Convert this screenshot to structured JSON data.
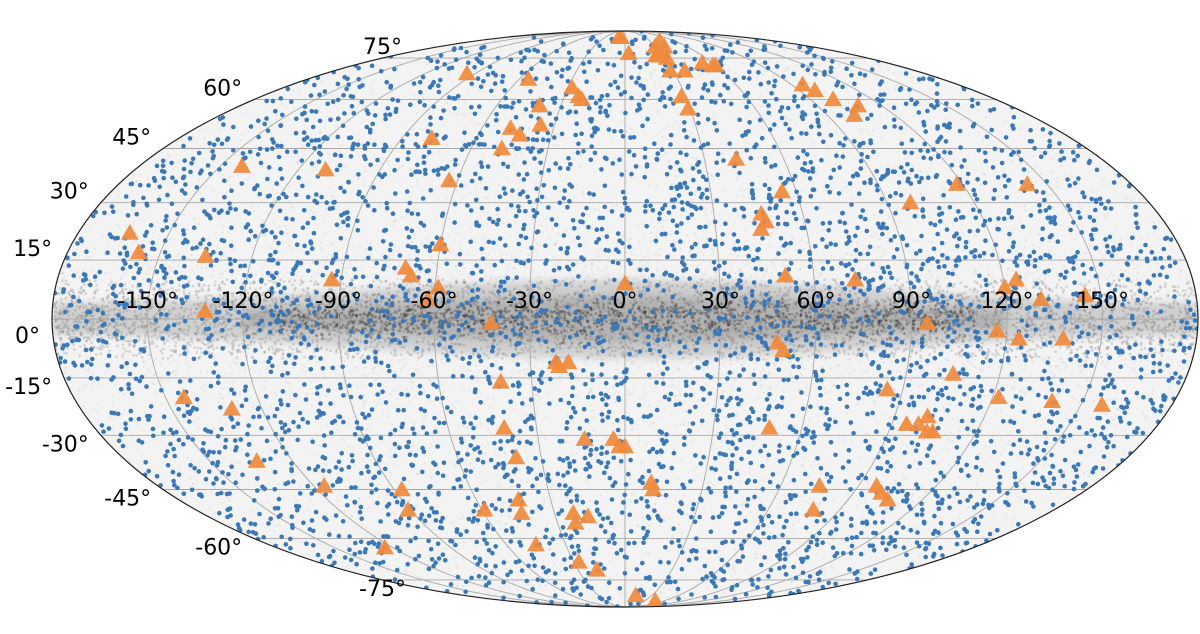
{
  "chart_data": {
    "type": "scatter",
    "projection": "mollweide (galactic coordinates)",
    "grid": true,
    "colors": {
      "background_stars": "#6b6b6b",
      "blue_points": "#3a78b8",
      "orange_triangles": "#f08a3c",
      "outline": "#222222",
      "gridlines": "#a8a8a8"
    },
    "xlim": [
      -180,
      180
    ],
    "ylim": [
      -90,
      90
    ],
    "lon_tick_labels": [
      "-150°",
      "-120°",
      "-90°",
      "-60°",
      "-30°",
      "0°",
      "30°",
      "60°",
      "90°",
      "120°",
      "150°"
    ],
    "lon_tick_values": [
      -150,
      -120,
      -90,
      -60,
      -30,
      0,
      30,
      60,
      90,
      120,
      150
    ],
    "lat_tick_labels": [
      "-75°",
      "-60°",
      "-45°",
      "-30°",
      "-15°",
      "0°",
      "15°",
      "30°",
      "45°",
      "60°",
      "75°"
    ],
    "lat_tick_values": [
      -75,
      -60,
      -45,
      -30,
      -15,
      0,
      15,
      30,
      45,
      60,
      75
    ],
    "series": [
      {
        "marker": "triangle",
        "color": "#f08a3c",
        "points": [
          [
            -9,
            85
          ],
          [
            -6,
            85
          ],
          [
            42,
            83
          ],
          [
            38,
            80
          ],
          [
            29,
            80
          ],
          [
            3,
            77
          ],
          [
            24,
            76
          ],
          [
            25,
            76
          ],
          [
            27,
            76
          ],
          [
            31,
            75
          ],
          [
            53,
            73
          ],
          [
            58,
            72
          ],
          [
            60,
            72
          ],
          [
            28,
            70
          ],
          [
            37,
            70
          ],
          [
            -95,
            69
          ],
          [
            -55,
            67
          ],
          [
            -28,
            64
          ],
          [
            96,
            65
          ],
          [
            98,
            63
          ],
          [
            28,
            61
          ],
          [
            -40,
            58
          ],
          [
            -23,
            61
          ],
          [
            -21,
            60
          ],
          [
            29,
            57
          ],
          [
            101,
            60
          ],
          [
            109,
            58
          ],
          [
            102,
            55
          ],
          [
            -36,
            52
          ],
          [
            -48,
            51
          ],
          [
            -43,
            49
          ],
          [
            -78,
            48
          ],
          [
            -48,
            45
          ],
          [
            -142,
            40
          ],
          [
            -110,
            39
          ],
          [
            -63,
            36
          ],
          [
            -163,
            22
          ],
          [
            42,
            42
          ],
          [
            55,
            33
          ],
          [
            98,
            30
          ],
          [
            118,
            35
          ],
          [
            143,
            35
          ],
          [
            46,
            27
          ],
          [
            47,
            25
          ],
          [
            45,
            23
          ],
          [
            -60,
            19
          ],
          [
            -157,
            17
          ],
          [
            -135,
            16
          ],
          [
            -70,
            13
          ],
          [
            -68,
            11
          ],
          [
            -93,
            10
          ],
          [
            -59,
            8
          ],
          [
            -62,
            5
          ],
          [
            0,
            9
          ],
          [
            51,
            11
          ],
          [
            73,
            10
          ],
          [
            124,
            10
          ],
          [
            120,
            8
          ],
          [
            145,
            6
          ],
          [
            131,
            5
          ],
          [
            -132,
            2
          ],
          [
            -42,
            -1
          ],
          [
            95,
            -1
          ],
          [
            117,
            -3
          ],
          [
            138,
            -5
          ],
          [
            124,
            -5
          ],
          [
            48,
            -6
          ],
          [
            50,
            -8
          ],
          [
            -22,
            -11
          ],
          [
            -21,
            -12
          ],
          [
            -18,
            -11
          ],
          [
            -40,
            -16
          ],
          [
            105,
            -14
          ],
          [
            85,
            -18
          ],
          [
            122,
            -20
          ],
          [
            140,
            -21
          ],
          [
            157,
            -22
          ],
          [
            -144,
            -20
          ],
          [
            -130,
            -23
          ],
          [
            -41,
            -28
          ],
          [
            -14,
            -31
          ],
          [
            -4,
            -31
          ],
          [
            -2,
            -33
          ],
          [
            0,
            -33
          ],
          [
            49,
            -28
          ],
          [
            101,
            -25
          ],
          [
            95,
            -27
          ],
          [
            99,
            -27
          ],
          [
            103,
            -29
          ],
          [
            105,
            -29
          ],
          [
            -39,
            -36
          ],
          [
            -133,
            -37
          ],
          [
            -116,
            -44
          ],
          [
            -87,
            -45
          ],
          [
            -91,
            -51
          ],
          [
            -59,
            -51
          ],
          [
            -43,
            -48
          ],
          [
            -44,
            -52
          ],
          [
            -22,
            -52
          ],
          [
            -16,
            -53
          ],
          [
            -22,
            -55
          ],
          [
            10,
            -43
          ],
          [
            11,
            -45
          ],
          [
            75,
            -44
          ],
          [
            97,
            -44
          ],
          [
            101,
            -46
          ],
          [
            79,
            -51
          ],
          [
            106,
            -48
          ],
          [
            -124,
            -63
          ],
          [
            -45,
            -62
          ],
          [
            -27,
            -68
          ],
          [
            -18,
            -71
          ],
          [
            12,
            -82
          ],
          [
            46,
            -85
          ]
        ]
      },
      {
        "marker": "circle",
        "color": "#3a78b8",
        "distribution": "thousands of points spread over the whole sky"
      },
      {
        "marker": "circle",
        "color": "#6b6b6b",
        "distribution": "dense band along galactic latitude 0°"
      }
    ]
  }
}
